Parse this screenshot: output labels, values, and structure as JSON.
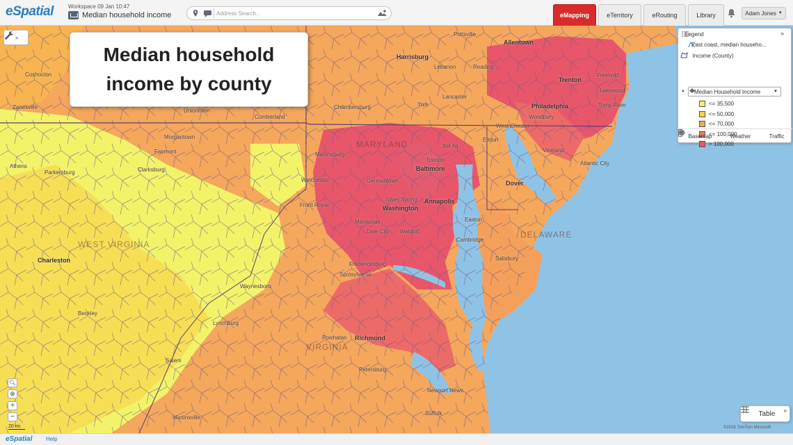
{
  "app": {
    "brand": "eSpatial",
    "footer_brand": "eSpatial",
    "help_label": "Help"
  },
  "workspace": {
    "meta": "Workspace 09 Jan 10:47",
    "title": "Median household income"
  },
  "search": {
    "placeholder": "Address Search..."
  },
  "nav": {
    "tabs": [
      {
        "label": "eMapping",
        "active": true
      },
      {
        "label": "eTerritory",
        "active": false
      },
      {
        "label": "eRouting",
        "active": false
      },
      {
        "label": "Library",
        "active": false
      }
    ],
    "user": "Adam Jones"
  },
  "map": {
    "title_card": "Median household income by county",
    "scale_label": "20 mi",
    "attribution": "©2018 TomTom  Microsoft",
    "cities": [
      "Pottsville",
      "Allentown",
      "Harrisburg",
      "Lebanon",
      "Reading",
      "Trenton",
      "Freehold",
      "Lakewood",
      "Toms River",
      "Philadelphia",
      "Woodbury",
      "Vineland",
      "Chambersburg",
      "York",
      "Lancaster",
      "West Chester",
      "Elkton",
      "Atlantic City",
      "Coshocton",
      "Zanesville",
      "Uniontown",
      "Cumberland",
      "Morgantown",
      "Fairmont",
      "Clarksburg",
      "Athens",
      "Parkersburg",
      "Martinsburg",
      "Winchester",
      "Front Royal",
      "Germantown",
      "Bel Air",
      "Baltimore",
      "Towson",
      "Silver Spring",
      "Washington",
      "Annapolis",
      "Dover",
      "Manassas",
      "Dale City",
      "Waldorf",
      "Easton",
      "Charleston",
      "Beckley",
      "Cambridge",
      "Fredericksburg",
      "Spotsylvania",
      "Salisbury",
      "Waynesboro",
      "Lynchburg",
      "Richmond",
      "Powhatan",
      "Petersburg",
      "Newport News",
      "Suffolk",
      "Martinsville",
      "Salem"
    ],
    "states": [
      "MARYLAND",
      "WEST VIRGINIA",
      "VIRGINIA",
      "DELAWARE"
    ]
  },
  "legend": {
    "title": "Legend",
    "layer_name": "East coast, median househo...",
    "sublayer": "Income (County)",
    "field": "Median Household Income",
    "items": [
      {
        "label": "<= 35,500",
        "color": "#f3f36a"
      },
      {
        "label": "<= 50,000",
        "color": "#f8d248"
      },
      {
        "label": "<= 70,000",
        "color": "#f5a75c"
      },
      {
        "label": "<= 100,000",
        "color": "#f07a5e"
      },
      {
        "label": "> 100,000",
        "color": "#e8566a"
      }
    ],
    "footer": {
      "basemap": "Basemap",
      "weather": "Weather",
      "traffic": "Traffic"
    }
  },
  "table_button": "Table"
}
